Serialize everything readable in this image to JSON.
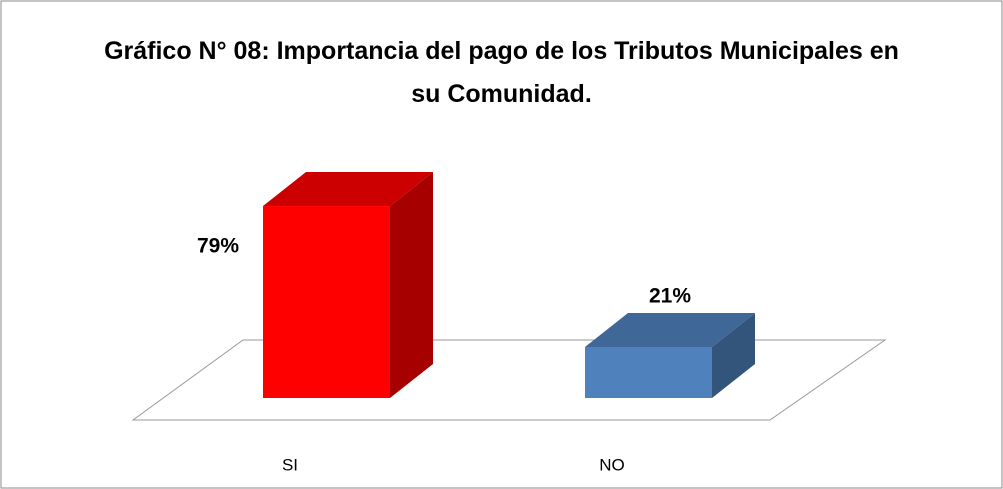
{
  "chart_data": {
    "type": "bar3d",
    "title": "Gráfico N° 08: Importancia del pago de los Tributos Municipales en su Comunidad.",
    "categories": [
      "SI",
      "NO"
    ],
    "values": [
      79,
      21
    ],
    "value_labels": [
      "79%",
      "21%"
    ],
    "colors": [
      "#ff0000",
      "#4f81bd"
    ]
  }
}
